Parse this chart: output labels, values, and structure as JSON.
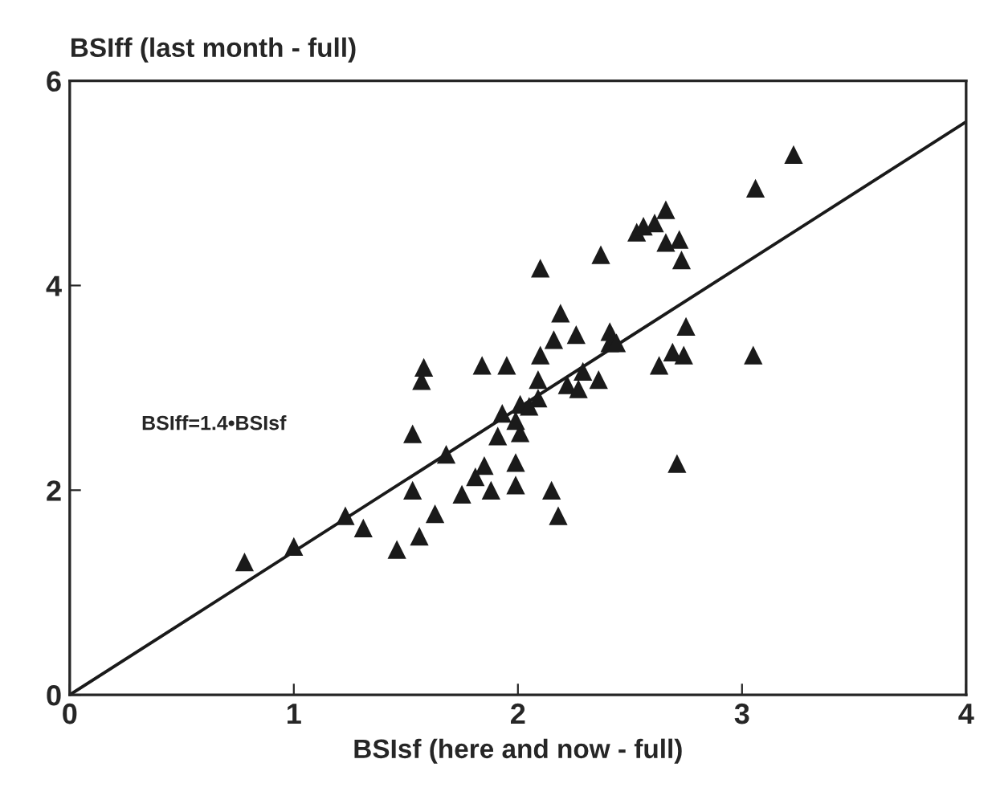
{
  "chart_data": {
    "type": "scatter",
    "xlabel": "BSIsf (here and now - full)",
    "ylabel": "BSIff (last month - full)",
    "xlim": [
      0,
      4
    ],
    "ylim": [
      0,
      6
    ],
    "xticks": [
      0,
      1,
      2,
      3,
      4
    ],
    "yticks": [
      0,
      2,
      4,
      6
    ],
    "grid": false,
    "legend": false,
    "annotations": [
      "BSIff=1.4•BSIsf"
    ],
    "series": [
      {
        "marker": "triangle",
        "color": "#1a1a1a",
        "x": [
          0.78,
          1.0,
          1.23,
          1.31,
          1.46,
          1.56,
          1.53,
          1.53,
          1.57,
          1.58,
          1.63,
          1.68,
          1.75,
          1.81,
          1.84,
          1.85,
          1.88,
          1.91,
          1.93,
          1.99,
          2.01,
          1.99,
          1.99,
          2.01,
          1.95,
          2.05,
          2.09,
          2.09,
          2.1,
          2.1,
          2.15,
          2.18,
          2.16,
          2.19,
          2.22,
          2.26,
          2.29,
          2.27,
          2.36,
          2.37,
          2.41,
          2.41,
          2.44,
          2.53,
          2.56,
          2.61,
          2.66,
          2.66,
          2.72,
          2.73,
          2.75,
          2.69,
          2.63,
          2.74,
          2.71,
          3.05,
          3.06,
          3.23
        ],
        "values": [
          1.3,
          1.45,
          1.75,
          1.63,
          1.42,
          1.55,
          2.0,
          2.55,
          3.07,
          3.2,
          1.77,
          2.35,
          1.96,
          2.13,
          3.22,
          2.24,
          2.0,
          2.53,
          2.75,
          2.27,
          2.56,
          2.05,
          2.68,
          2.84,
          3.22,
          2.82,
          2.9,
          3.08,
          3.32,
          4.17,
          2.0,
          1.75,
          3.47,
          3.73,
          3.03,
          3.52,
          3.16,
          2.99,
          3.08,
          4.3,
          3.55,
          3.44,
          3.44,
          4.52,
          4.58,
          4.61,
          4.42,
          4.74,
          4.45,
          4.25,
          3.6,
          3.35,
          3.22,
          3.32,
          2.26,
          3.32,
          4.95,
          5.28
        ]
      },
      {
        "type": "line",
        "marker": "none",
        "color": "#1a1a1a",
        "x": [
          0,
          4
        ],
        "values": [
          0,
          5.6
        ]
      }
    ]
  }
}
